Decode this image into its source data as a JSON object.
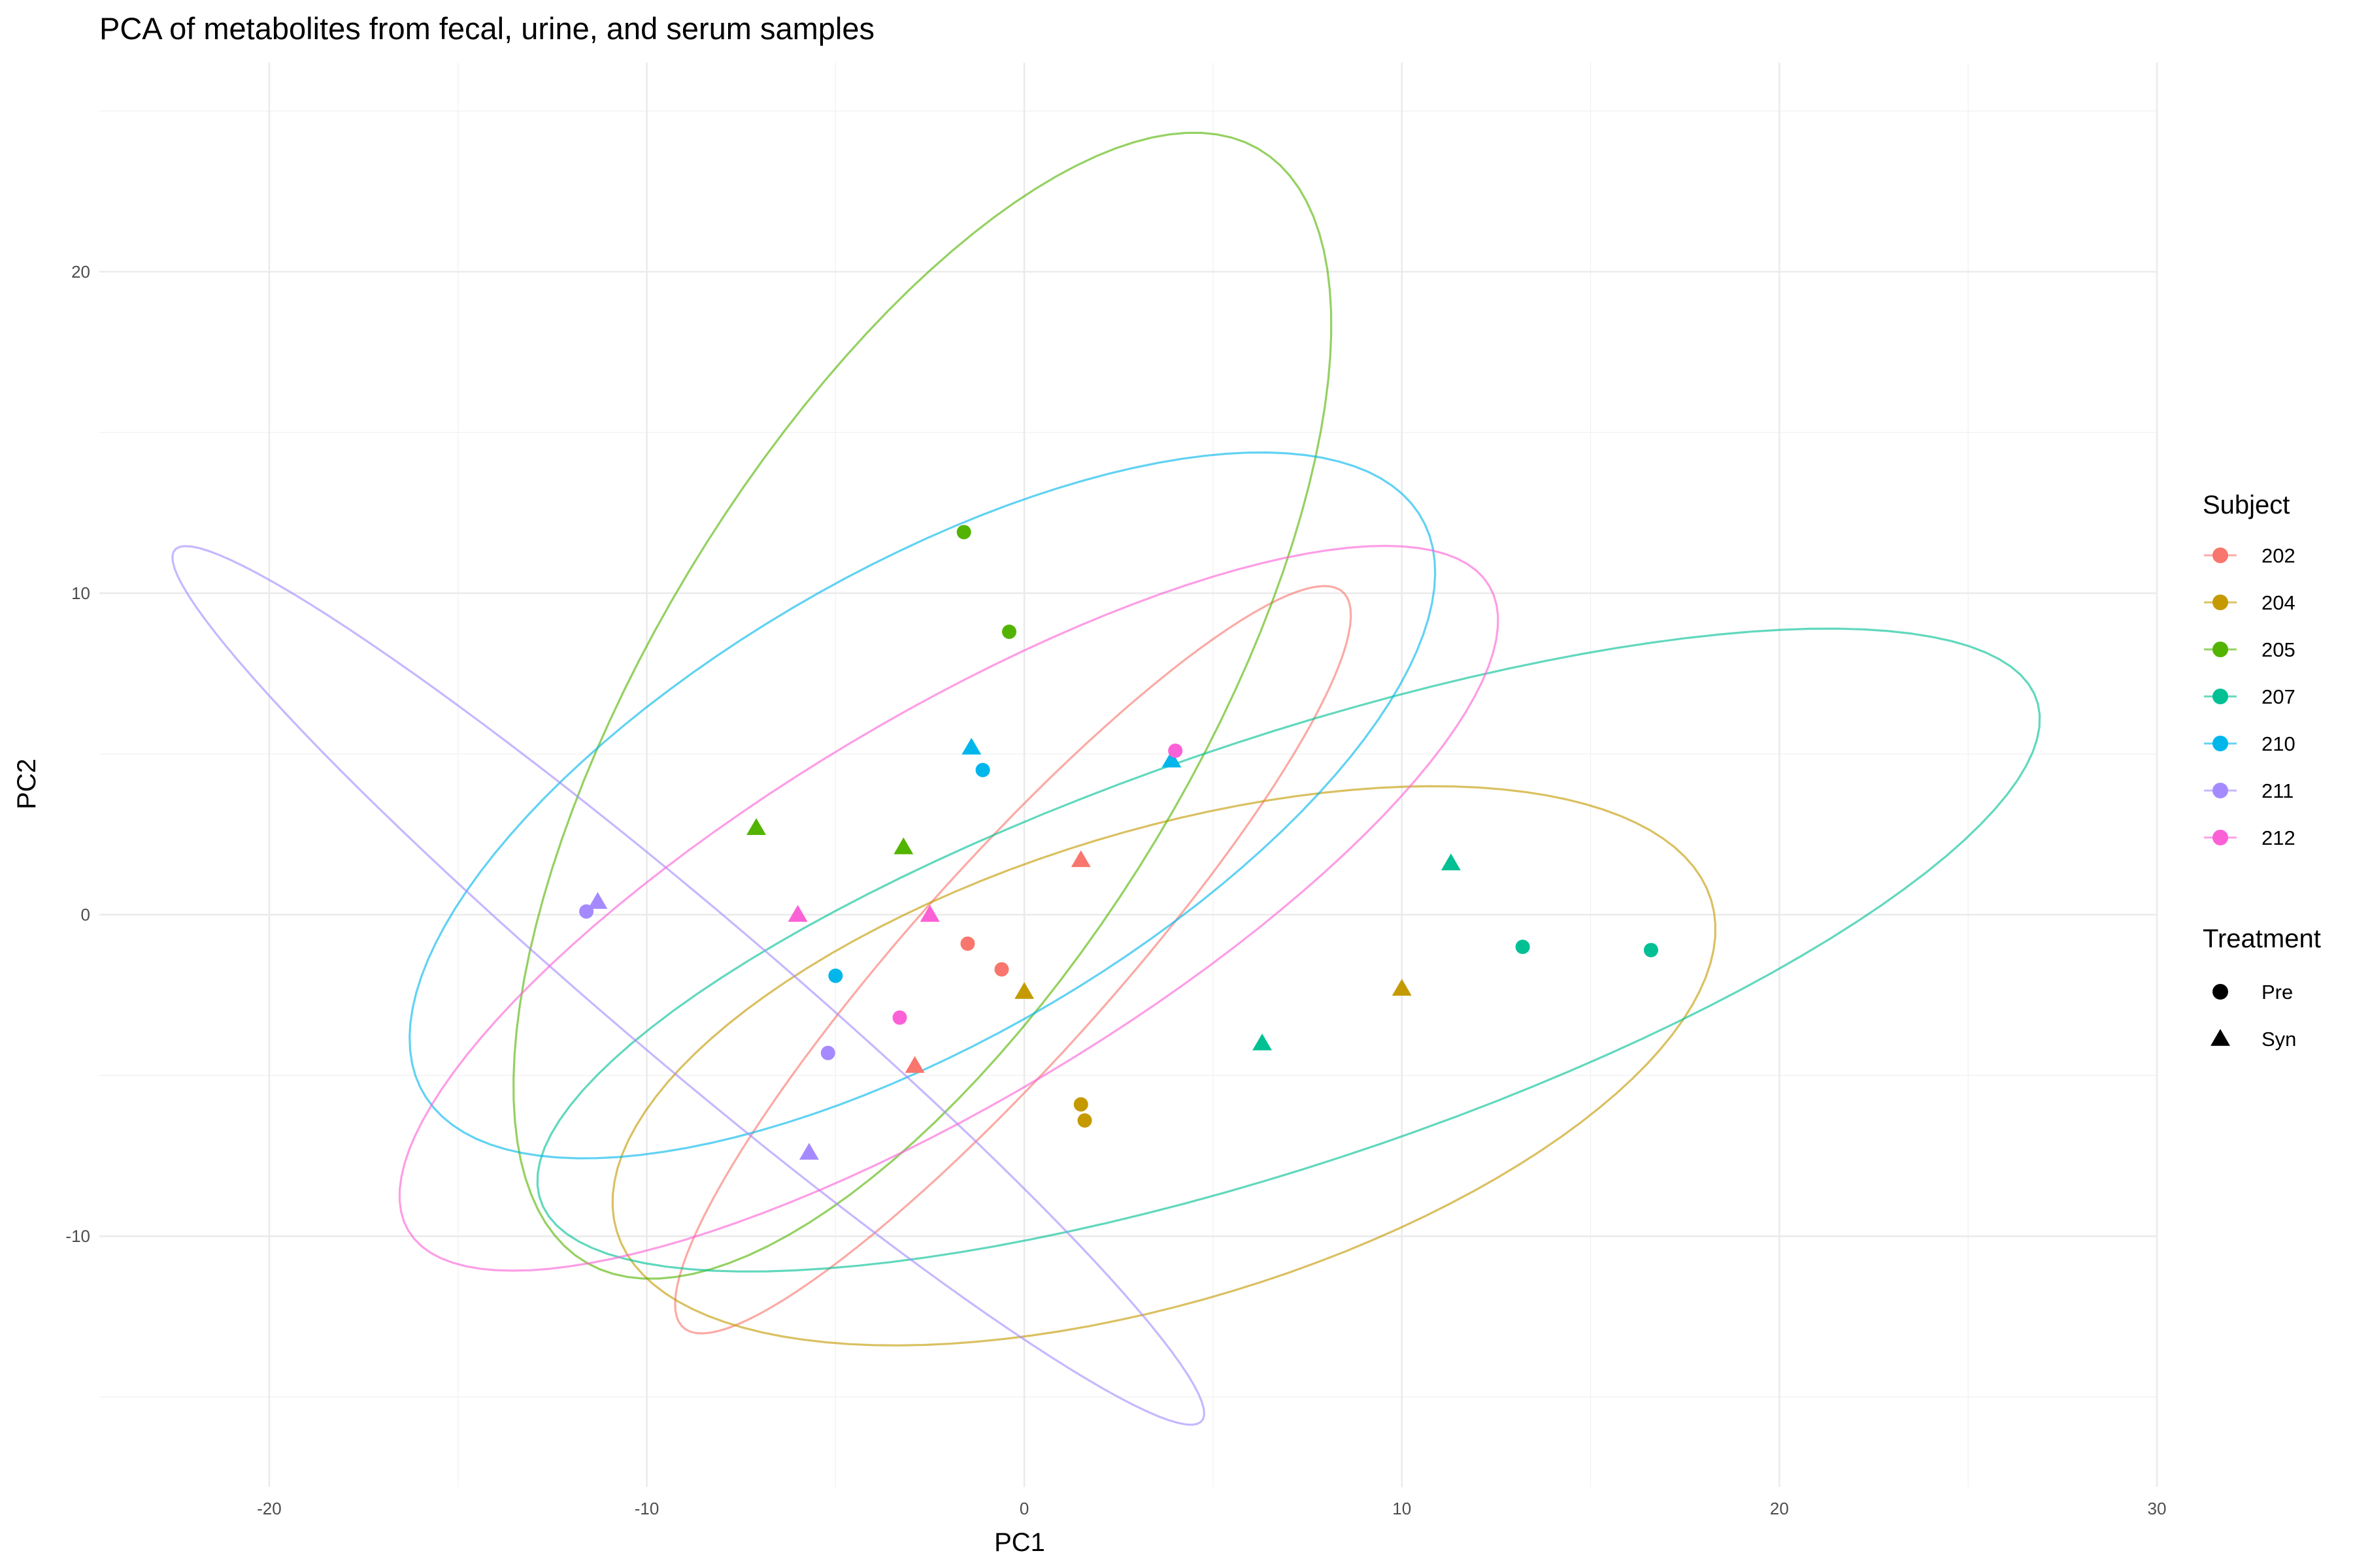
{
  "chart_data": {
    "type": "scatter",
    "title": "PCA of metabolites from fecal, urine, and serum samples",
    "xlabel": "PC1",
    "ylabel": "PC2",
    "xlim": [
      -24.5,
      30
    ],
    "ylim": [
      -17.8,
      26.5
    ],
    "x_ticks": [
      -20,
      -10,
      0,
      10,
      20,
      30
    ],
    "y_ticks": [
      -10,
      0,
      10,
      20
    ],
    "x_minor": [
      -15,
      -5,
      5,
      15,
      25
    ],
    "y_minor": [
      -15,
      -5,
      5,
      15,
      25
    ],
    "grid": true,
    "legend_position": "right",
    "color_legend": {
      "title": "Subject",
      "entries": [
        {
          "label": "202",
          "color": "#F8766D"
        },
        {
          "label": "204",
          "color": "#C49A00"
        },
        {
          "label": "205",
          "color": "#53B400"
        },
        {
          "label": "207",
          "color": "#00C094"
        },
        {
          "label": "210",
          "color": "#00B6EB"
        },
        {
          "label": "211",
          "color": "#A58AFF"
        },
        {
          "label": "212",
          "color": "#FB61D7"
        }
      ]
    },
    "shape_legend": {
      "title": "Treatment",
      "entries": [
        {
          "label": "Pre",
          "shape": "circle"
        },
        {
          "label": "Syn",
          "shape": "triangle"
        }
      ]
    },
    "points": [
      {
        "subject": "202",
        "treatment": "Pre",
        "x": -1.5,
        "y": -0.9
      },
      {
        "subject": "202",
        "treatment": "Pre",
        "x": -0.6,
        "y": -1.7
      },
      {
        "subject": "202",
        "treatment": "Syn",
        "x": 1.5,
        "y": 1.7
      },
      {
        "subject": "202",
        "treatment": "Syn",
        "x": -2.9,
        "y": -4.7
      },
      {
        "subject": "204",
        "treatment": "Pre",
        "x": 1.5,
        "y": -5.9
      },
      {
        "subject": "204",
        "treatment": "Pre",
        "x": 1.6,
        "y": -6.4
      },
      {
        "subject": "204",
        "treatment": "Syn",
        "x": 0.0,
        "y": -2.4
      },
      {
        "subject": "204",
        "treatment": "Syn",
        "x": 10.0,
        "y": -2.3
      },
      {
        "subject": "205",
        "treatment": "Pre",
        "x": -1.6,
        "y": 11.9
      },
      {
        "subject": "205",
        "treatment": "Pre",
        "x": -0.4,
        "y": 8.8
      },
      {
        "subject": "205",
        "treatment": "Syn",
        "x": -7.1,
        "y": 2.7
      },
      {
        "subject": "205",
        "treatment": "Syn",
        "x": -3.2,
        "y": 2.1
      },
      {
        "subject": "207",
        "treatment": "Pre",
        "x": 13.2,
        "y": -1.0
      },
      {
        "subject": "207",
        "treatment": "Pre",
        "x": 16.6,
        "y": -1.1
      },
      {
        "subject": "207",
        "treatment": "Syn",
        "x": 11.3,
        "y": 1.6
      },
      {
        "subject": "207",
        "treatment": "Syn",
        "x": 6.3,
        "y": -4.0
      },
      {
        "subject": "210",
        "treatment": "Pre",
        "x": -1.1,
        "y": 4.5
      },
      {
        "subject": "210",
        "treatment": "Pre",
        "x": -5.0,
        "y": -1.9
      },
      {
        "subject": "210",
        "treatment": "Syn",
        "x": -1.4,
        "y": 5.2
      },
      {
        "subject": "210",
        "treatment": "Syn",
        "x": 3.9,
        "y": 4.8
      },
      {
        "subject": "211",
        "treatment": "Pre",
        "x": -11.6,
        "y": 0.1
      },
      {
        "subject": "211",
        "treatment": "Pre",
        "x": -5.2,
        "y": -4.3
      },
      {
        "subject": "211",
        "treatment": "Syn",
        "x": -11.3,
        "y": 0.4
      },
      {
        "subject": "211",
        "treatment": "Syn",
        "x": -5.7,
        "y": -7.4
      },
      {
        "subject": "212",
        "treatment": "Pre",
        "x": 4.0,
        "y": 5.1
      },
      {
        "subject": "212",
        "treatment": "Pre",
        "x": -3.3,
        "y": -3.2
      },
      {
        "subject": "212",
        "treatment": "Syn",
        "x": -6.0,
        "y": 0.0
      },
      {
        "subject": "212",
        "treatment": "Syn",
        "x": -2.5,
        "y": 0.0
      }
    ],
    "ellipses": [
      {
        "subject": "202",
        "center": [
          -0.3,
          -1.4
        ],
        "semi_major": 14.4,
        "semi_minor": 2.8,
        "angle_deg": 53
      },
      {
        "subject": "204",
        "center": [
          3.7,
          -4.7
        ],
        "semi_major": 15.4,
        "semi_minor": 7.2,
        "angle_deg": 21
      },
      {
        "subject": "205",
        "center": [
          -2.7,
          6.5
        ],
        "semi_major": 19.5,
        "semi_minor": 7.4,
        "angle_deg": 64
      },
      {
        "subject": "207",
        "center": [
          7.0,
          -1.1
        ],
        "semi_major": 21.3,
        "semi_minor": 6.5,
        "angle_deg": 22
      },
      {
        "subject": "210",
        "center": [
          -2.7,
          3.4
        ],
        "semi_major": 16.0,
        "semi_minor": 7.0,
        "angle_deg": 36
      },
      {
        "subject": "211",
        "center": [
          -8.9,
          -2.2
        ],
        "semi_major": 19.2,
        "semi_minor": 2.2,
        "angle_deg": -45
      },
      {
        "subject": "212",
        "center": [
          -2.0,
          0.2
        ],
        "semi_major": 17.5,
        "semi_minor": 5.7,
        "angle_deg": 36
      }
    ]
  }
}
